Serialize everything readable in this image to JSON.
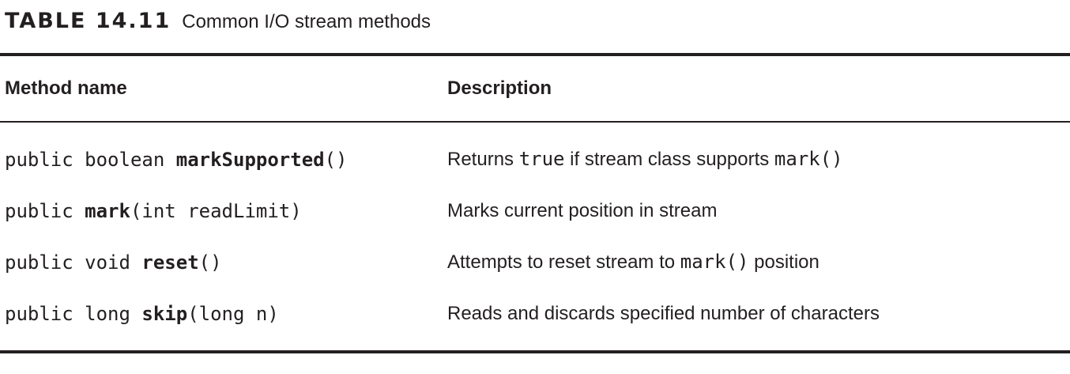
{
  "caption": {
    "label": "TABLE 14.11",
    "title": "Common I/O stream methods"
  },
  "table": {
    "headers": {
      "method": "Method name",
      "description": "Description"
    },
    "rows": [
      {
        "method_prefix": "public boolean ",
        "method_name": "markSupported",
        "method_suffix": "()",
        "desc_before": "Returns ",
        "desc_code1": "true",
        "desc_middle": " if stream class supports ",
        "desc_code2": "mark()",
        "desc_after": ""
      },
      {
        "method_prefix": "public ",
        "method_name": "mark",
        "method_suffix": "(int readLimit)",
        "desc_before": "Marks current position in stream",
        "desc_code1": "",
        "desc_middle": "",
        "desc_code2": "",
        "desc_after": ""
      },
      {
        "method_prefix": "public void ",
        "method_name": "reset",
        "method_suffix": "()",
        "desc_before": "Attempts to reset stream to ",
        "desc_code1": "mark()",
        "desc_middle": " position",
        "desc_code2": "",
        "desc_after": ""
      },
      {
        "method_prefix": "public long ",
        "method_name": "skip",
        "method_suffix": "(long n)",
        "desc_before": "Reads and discards specified number of characters",
        "desc_code1": "",
        "desc_middle": "",
        "desc_code2": "",
        "desc_after": ""
      }
    ]
  }
}
